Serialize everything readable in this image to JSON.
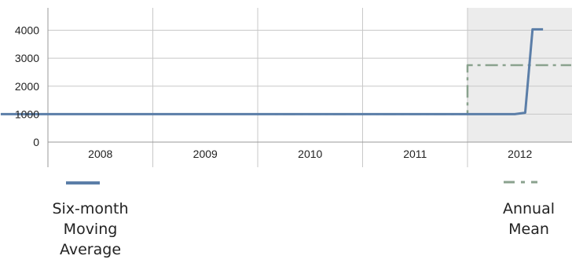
{
  "chart_data": {
    "type": "line",
    "x_categories": [
      "2008",
      "2009",
      "2010",
      "2011",
      "2012"
    ],
    "y_ticks": [
      0,
      1000,
      2000,
      3000,
      4000
    ],
    "ylim": [
      0,
      4800
    ],
    "highlight_band": {
      "from_category": "2012",
      "color": "#ececec"
    },
    "grid": true,
    "series": [
      {
        "name": "Six-month Moving Average",
        "style": "solid",
        "color": "#5b7ea8",
        "points": [
          {
            "x": 2007.55,
            "y": 1000
          },
          {
            "x": 2012.45,
            "y": 1000
          },
          {
            "x": 2012.55,
            "y": 1050
          },
          {
            "x": 2012.62,
            "y": 4030
          },
          {
            "x": 2012.72,
            "y": 4030
          }
        ]
      },
      {
        "name": "Annual Mean",
        "style": "dashdot",
        "color": "#8aa28e",
        "points": [
          {
            "x": 2010.0,
            "y": 1000
          },
          {
            "x": 2012.0,
            "y": 1000
          },
          {
            "x": 2012.0,
            "y": 2750
          },
          {
            "x": 2013.0,
            "y": 2750
          }
        ]
      }
    ],
    "legend": {
      "placement": "bottom"
    }
  },
  "legend": {
    "items": [
      {
        "label": "Six-month\nMoving\nAverage",
        "color": "#5b7ea8"
      },
      {
        "label": "Annual\nMean",
        "color": "#8aa28e"
      }
    ]
  },
  "colors": {
    "grid": "#c8c8c8",
    "axis": "#999999",
    "band": "#ececec"
  }
}
